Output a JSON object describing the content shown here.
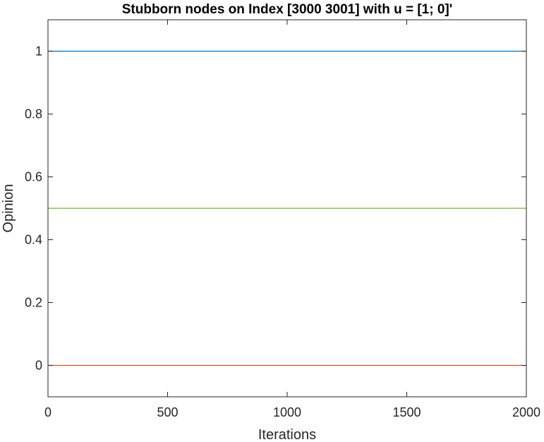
{
  "chart_data": {
    "type": "line",
    "title": "Stubborn nodes on Index [3000 3001] with u = [1; 0]'",
    "xlabel": "Iterations",
    "ylabel": "Opinion",
    "xlim": [
      0,
      2000
    ],
    "ylim": [
      -0.1,
      1.1
    ],
    "xticks": [
      0,
      500,
      1000,
      1500,
      2000
    ],
    "xtick_labels": [
      "0",
      "500",
      "1000",
      "1500",
      "2000"
    ],
    "yticks": [
      0,
      0.2,
      0.4,
      0.6,
      0.8,
      1
    ],
    "ytick_labels": [
      "0",
      "0.2",
      "0.4",
      "0.6",
      "0.8",
      "1"
    ],
    "grid": false,
    "box": true,
    "series": [
      {
        "x": [
          0,
          2000
        ],
        "values": [
          1,
          1
        ],
        "color": "#0072bd"
      },
      {
        "x": [
          0,
          2000
        ],
        "values": [
          0.5,
          0.5
        ],
        "color": "#77ac30"
      },
      {
        "x": [
          0,
          2000
        ],
        "values": [
          0,
          0
        ],
        "color": "#d95319"
      }
    ],
    "colors": {
      "axis": "#262626",
      "background": "#ffffff"
    }
  }
}
